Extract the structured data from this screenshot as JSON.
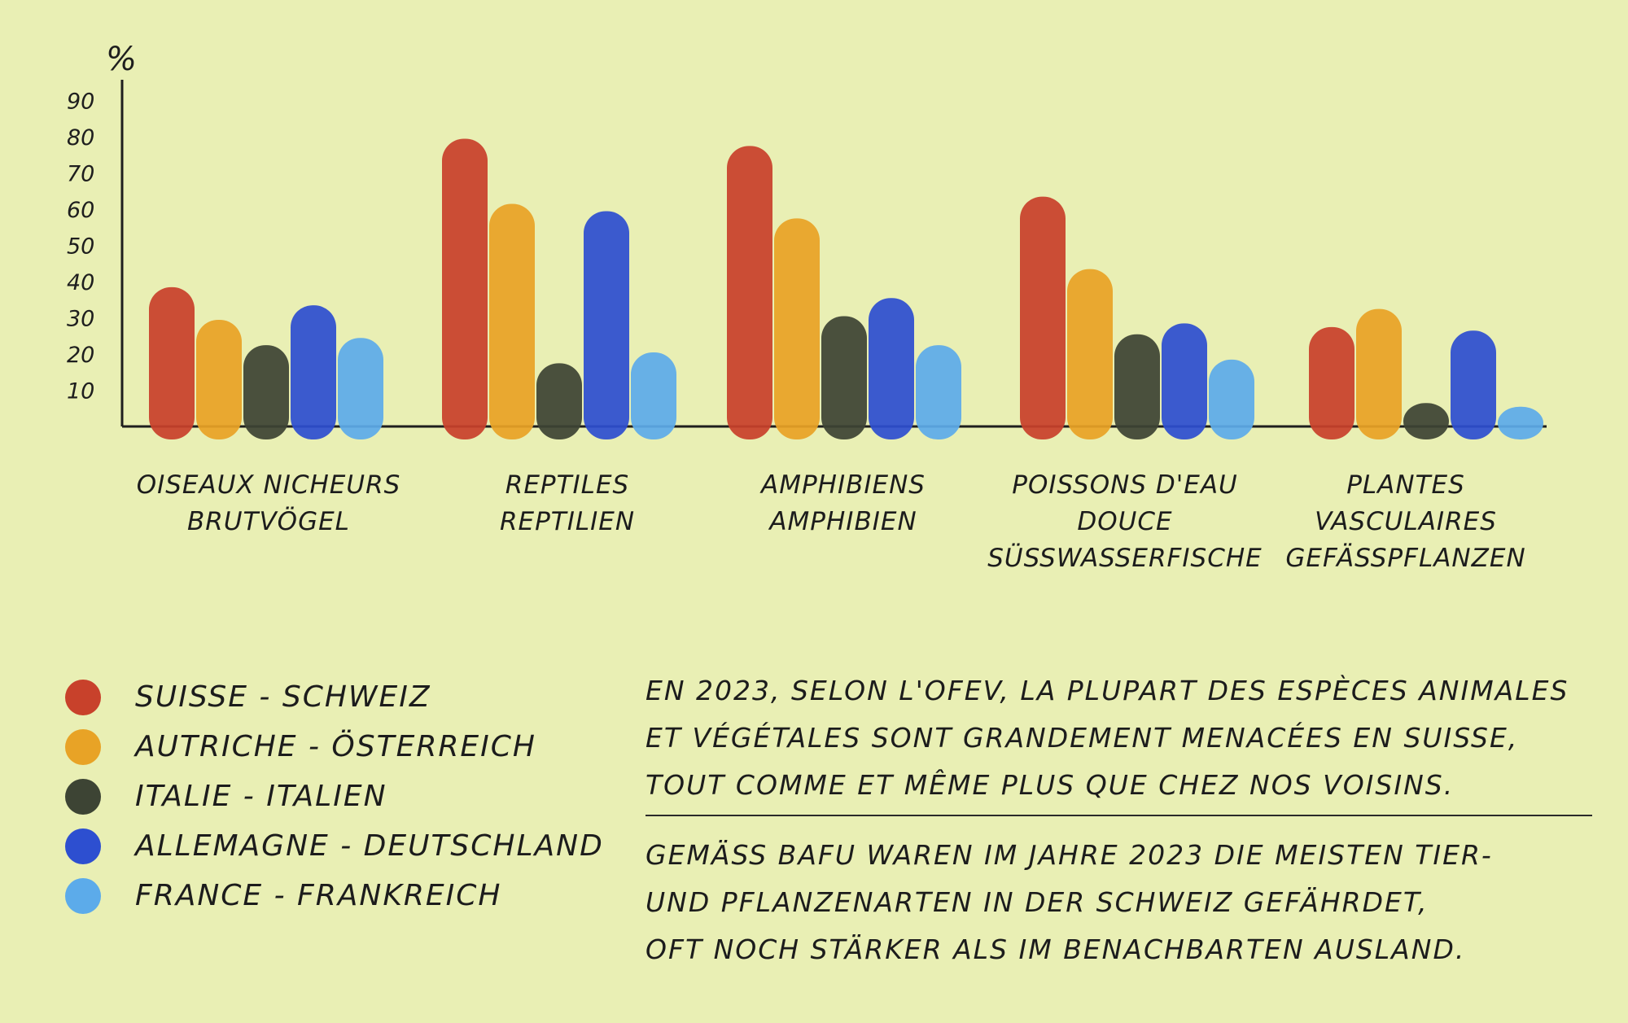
{
  "chart_data": {
    "type": "bar",
    "ylabel": "%",
    "ylim": [
      0,
      90
    ],
    "yticks": [
      10,
      20,
      30,
      40,
      50,
      60,
      70,
      80,
      90
    ],
    "categories": [
      [
        "OISEAUX NICHEURS",
        "BRUTVÖGEL"
      ],
      [
        "REPTILES",
        "REPTILIEN"
      ],
      [
        "AMPHIBIENS",
        "AMPHIBIEN"
      ],
      [
        "POISSONS D'EAU DOUCE",
        "SÜSSWASSERFISCHE"
      ],
      [
        "PLANTES VASCULAIRES",
        "GEFÄSSPFLANZEN"
      ]
    ],
    "series": [
      {
        "name": "SUISSE - SCHWEIZ",
        "color": "#c8412b",
        "values": [
          38,
          79,
          77,
          63,
          27
        ]
      },
      {
        "name": "AUTRICHE - ÖSTERREICH",
        "color": "#e8a326",
        "values": [
          29,
          61,
          57,
          43,
          32
        ]
      },
      {
        "name": "ITALIE - ITALIEN",
        "color": "#3d4434",
        "values": [
          22,
          17,
          30,
          25,
          6
        ]
      },
      {
        "name": "ALLEMAGNE - DEUTSCHLAND",
        "color": "#2d4fd0",
        "values": [
          33,
          59,
          35,
          28,
          26
        ]
      },
      {
        "name": "FRANCE - FRANKREICH",
        "color": "#5cabea",
        "values": [
          24,
          20,
          22,
          18,
          5
        ]
      }
    ],
    "grid": false,
    "legend": "bottom-left"
  },
  "notes": {
    "french": [
      "EN 2023, SELON L'OFEV, LA PLUPART DES ESPÈCES ANIMALES",
      "ET VÉGÉTALES SONT GRANDEMENT MENACÉES EN SUISSE,",
      "TOUT COMME ET MÊME PLUS QUE CHEZ NOS VOISINS."
    ],
    "german": [
      "GEMÄSS BAFU WAREN IM JAHRE 2023 DIE MEISTEN TIER-",
      "UND PFLANZENARTEN IN DER SCHWEIZ GEFÄHRDET,",
      "OFT NOCH STÄRKER ALS IM BENACHBARTEN AUSLAND."
    ]
  }
}
